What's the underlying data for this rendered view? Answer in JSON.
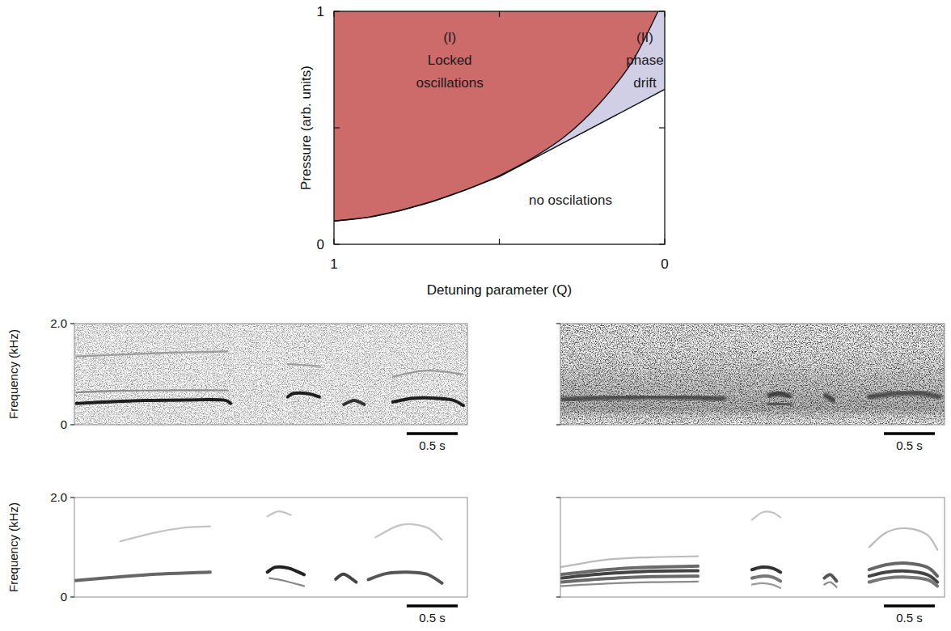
{
  "chart_data": [
    {
      "type": "area",
      "x_label": "Detuning parameter (Q)",
      "y_label": "Pressure (arb. units)",
      "xlim": [
        1,
        0
      ],
      "ylim": [
        0,
        1
      ],
      "xticks": [
        1,
        {
          "value": 0.5,
          "label": null
        },
        0
      ],
      "yticks": [
        0,
        {
          "value": 0.5,
          "label": null
        },
        1
      ],
      "series": [
        {
          "color": "#cd6a6a",
          "line_style": "smooth",
          "x": [
            1,
            0.9,
            0.8,
            0.7,
            0.6,
            0.5,
            0.4,
            0.3,
            0.2,
            0.1,
            0.02
          ],
          "values": [
            0.1,
            0.115,
            0.145,
            0.185,
            0.235,
            0.295,
            0.37,
            0.465,
            0.6,
            0.78,
            1
          ]
        },
        {
          "color": "#d1cfe5",
          "line_style": "solid",
          "x": [
            1,
            0.9,
            0.8,
            0.7,
            0.6,
            0.5,
            0
          ],
          "values": [
            0.1,
            0.115,
            0.145,
            0.185,
            0.235,
            0.29,
            0.665
          ]
        }
      ],
      "annotations": [
        {
          "lines": [
            "(I)",
            "Locked",
            "oscillations"
          ],
          "x": 0.65,
          "y": 0.89
        },
        {
          "lines": [
            "(II)",
            "phase",
            "drift"
          ],
          "x": 0.06,
          "y": 0.89
        },
        {
          "lines": [
            "no oscilations"
          ],
          "x": 0.285,
          "y": 0.19
        }
      ]
    },
    {
      "type": "spectrogram",
      "y_label": "Frequency (kHz)",
      "xlim": [
        0,
        3.85
      ],
      "ylim": [
        0,
        2
      ],
      "yticks": [
        0,
        {
          "value": 2,
          "label": "2.0"
        }
      ],
      "tick_labels": "y",
      "scale_bar": {
        "value": 0.5,
        "label": "0.5 s"
      },
      "series": [
        {
          "color": "#1e1e1e",
          "x": [
            0.02,
            0.3,
            0.7,
            1.1,
            1.45,
            1.53
          ],
          "values": [
            0.42,
            0.45,
            0.48,
            0.49,
            0.49,
            0.42
          ]
        },
        {
          "color": "#8a8a8a",
          "x": [
            0.02,
            0.4,
            0.9,
            1.5
          ],
          "values": [
            0.64,
            0.67,
            0.68,
            0.68
          ]
        },
        {
          "color": "#9a9a9a",
          "x": [
            0.02,
            0.5,
            1.0,
            1.5
          ],
          "values": [
            1.35,
            1.39,
            1.43,
            1.45
          ]
        },
        {
          "color": "#1e1e1e",
          "x": [
            2.09,
            2.15,
            2.3,
            2.4
          ],
          "values": [
            0.55,
            0.62,
            0.61,
            0.55
          ]
        },
        {
          "color": "#9a9a9a",
          "x": [
            2.09,
            2.4
          ],
          "values": [
            1.2,
            1.16
          ]
        },
        {
          "color": "#333333",
          "x": [
            2.64,
            2.74,
            2.84
          ],
          "values": [
            0.4,
            0.48,
            0.4
          ]
        },
        {
          "color": "#1e1e1e",
          "x": [
            3.12,
            3.3,
            3.5,
            3.7,
            3.81
          ],
          "values": [
            0.45,
            0.52,
            0.53,
            0.49,
            0.38
          ]
        },
        {
          "color": "#9a9a9a",
          "x": [
            3.12,
            3.45,
            3.8
          ],
          "values": [
            0.95,
            1.07,
            1.0
          ]
        }
      ]
    },
    {
      "type": "spectrogram",
      "xlim": [
        0,
        3.77
      ],
      "ylim": [
        0,
        2
      ],
      "yticks": [
        0,
        2
      ],
      "tick_labels": false,
      "scale_bar": {
        "value": 0.5,
        "label": "0.5 s"
      },
      "series": [
        {
          "color": "#3a3a3a",
          "x": [
            0.02,
            0.8,
            1.6
          ],
          "values": [
            0.5,
            0.55,
            0.52
          ]
        },
        {
          "color": "#2a2a2a",
          "x": [
            2.05,
            2.15,
            2.25
          ],
          "values": [
            0.58,
            0.62,
            0.56
          ]
        },
        {
          "color": "#444444",
          "x": [
            2.05,
            2.25
          ],
          "values": [
            0.42,
            0.4
          ]
        },
        {
          "color": "#333333",
          "x": [
            2.6,
            2.68
          ],
          "values": [
            0.58,
            0.48
          ]
        },
        {
          "color": "#3a3a3a",
          "x": [
            3.03,
            3.3,
            3.55,
            3.72
          ],
          "values": [
            0.55,
            0.62,
            0.62,
            0.55
          ]
        }
      ]
    },
    {
      "type": "spectrogram",
      "y_label": "Frequency (kHz)",
      "xlim": [
        0,
        3.85
      ],
      "ylim": [
        0,
        2
      ],
      "yticks": [
        0,
        {
          "value": 2,
          "label": "2.0"
        }
      ],
      "tick_labels": "y",
      "scale_bar": {
        "value": 0.5,
        "label": "0.5 s"
      },
      "series": [
        {
          "color": "#666666",
          "x": [
            0,
            0.4,
            0.8,
            1.2,
            1.33
          ],
          "values": [
            0.33,
            0.4,
            0.46,
            0.49,
            0.5
          ]
        },
        {
          "color": "#c4c4c4",
          "x": [
            0.45,
            0.8,
            1.1,
            1.33
          ],
          "values": [
            1.12,
            1.3,
            1.4,
            1.42
          ]
        },
        {
          "color": "#222222",
          "x": [
            1.89,
            1.97,
            2.1,
            2.25
          ],
          "values": [
            0.5,
            0.6,
            0.58,
            0.45
          ]
        },
        {
          "color": "#888888",
          "x": [
            1.91,
            2.05,
            2.25
          ],
          "values": [
            0.38,
            0.33,
            0.22
          ]
        },
        {
          "color": "#c4c4c4",
          "x": [
            1.89,
            2.0,
            2.12
          ],
          "values": [
            1.62,
            1.72,
            1.65
          ]
        },
        {
          "color": "#444444",
          "x": [
            2.56,
            2.64,
            2.76
          ],
          "values": [
            0.36,
            0.46,
            0.3
          ]
        },
        {
          "color": "#555555",
          "x": [
            2.88,
            3.05,
            3.25,
            3.45,
            3.6
          ],
          "values": [
            0.35,
            0.47,
            0.5,
            0.46,
            0.28
          ]
        },
        {
          "color": "#c4c4c4",
          "x": [
            2.95,
            3.2,
            3.45,
            3.6
          ],
          "values": [
            1.2,
            1.45,
            1.4,
            1.15
          ]
        }
      ]
    },
    {
      "type": "spectrogram",
      "xlim": [
        0,
        3.77
      ],
      "ylim": [
        0,
        2
      ],
      "yticks": [
        0,
        2
      ],
      "tick_labels": false,
      "scale_bar": {
        "value": 0.5,
        "label": "0.5 s"
      },
      "series": [
        {
          "color": "#8a8a8a",
          "x": [
            0,
            0.45,
            0.9,
            1.35
          ],
          "values": [
            0.22,
            0.27,
            0.3,
            0.31
          ]
        },
        {
          "color": "#6a6a6a",
          "x": [
            0,
            0.45,
            0.9,
            1.35
          ],
          "values": [
            0.3,
            0.37,
            0.41,
            0.42
          ]
        },
        {
          "color": "#444444",
          "x": [
            0,
            0.45,
            0.9,
            1.35
          ],
          "values": [
            0.38,
            0.47,
            0.52,
            0.53
          ]
        },
        {
          "color": "#6a6a6a",
          "x": [
            0,
            0.45,
            0.9,
            1.35
          ],
          "values": [
            0.45,
            0.55,
            0.6,
            0.62
          ]
        },
        {
          "color": "#bbbbbb",
          "x": [
            0,
            0.45,
            0.9,
            1.35
          ],
          "values": [
            0.6,
            0.75,
            0.8,
            0.82
          ]
        },
        {
          "color": "#333333",
          "x": [
            1.88,
            1.98,
            2.08,
            2.16
          ],
          "values": [
            0.55,
            0.6,
            0.58,
            0.5
          ]
        },
        {
          "color": "#777777",
          "x": [
            1.88,
            1.98,
            2.08,
            2.16
          ],
          "values": [
            0.38,
            0.42,
            0.4,
            0.32
          ]
        },
        {
          "color": "#999999",
          "x": [
            1.88,
            1.98,
            2.08,
            2.16
          ],
          "values": [
            0.25,
            0.28,
            0.25,
            0.18
          ]
        },
        {
          "color": "#c4c4c4",
          "x": [
            1.88,
            1.98,
            2.08,
            2.16
          ],
          "values": [
            1.55,
            1.7,
            1.7,
            1.6
          ]
        },
        {
          "color": "#555555",
          "x": [
            2.59,
            2.65,
            2.71
          ],
          "values": [
            0.38,
            0.45,
            0.32
          ]
        },
        {
          "color": "#888888",
          "x": [
            2.59,
            2.65,
            2.71
          ],
          "values": [
            0.25,
            0.3,
            0.2
          ]
        },
        {
          "color": "#444444",
          "x": [
            3.03,
            3.2,
            3.4,
            3.6,
            3.7
          ],
          "values": [
            0.42,
            0.5,
            0.52,
            0.45,
            0.3
          ]
        },
        {
          "color": "#777777",
          "x": [
            3.03,
            3.2,
            3.4,
            3.6,
            3.7
          ],
          "values": [
            0.3,
            0.38,
            0.4,
            0.35,
            0.22
          ]
        },
        {
          "color": "#666666",
          "x": [
            3.03,
            3.2,
            3.4,
            3.6,
            3.7
          ],
          "values": [
            0.55,
            0.65,
            0.68,
            0.6,
            0.42
          ]
        },
        {
          "color": "#bbbbbb",
          "x": [
            3.03,
            3.2,
            3.4,
            3.6,
            3.7
          ],
          "values": [
            1.0,
            1.3,
            1.38,
            1.25,
            0.95
          ]
        }
      ]
    }
  ]
}
